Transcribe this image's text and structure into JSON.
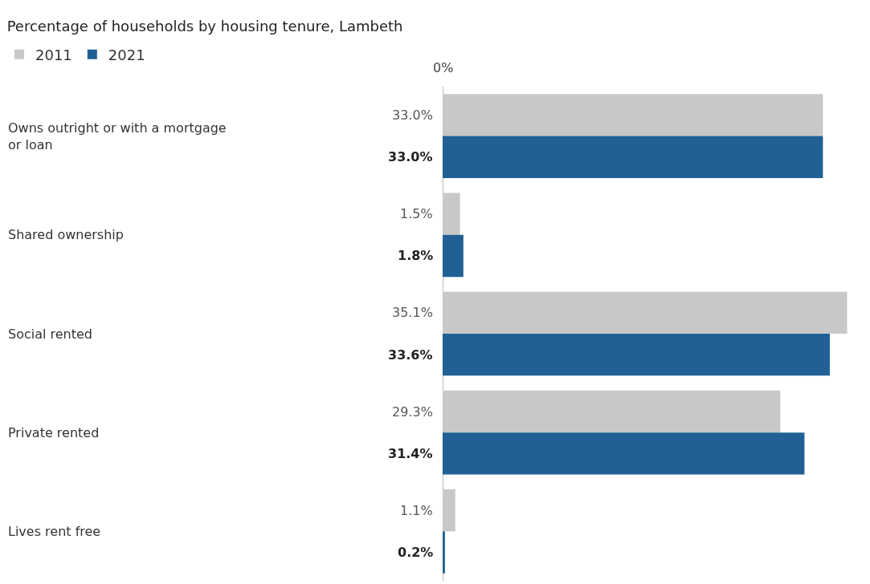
{
  "chart_data": {
    "type": "bar",
    "orientation": "horizontal",
    "title": "Percentage of households by housing tenure, Lambeth",
    "categories": [
      "Owns outright or with a mortgage or loan",
      "Shared ownership",
      "Social rented",
      "Private rented",
      "Lives rent free"
    ],
    "series": [
      {
        "name": "2011",
        "color": "#c8c8c8",
        "values": [
          33.0,
          1.5,
          35.1,
          29.3,
          1.1
        ],
        "value_labels": [
          "33.0%",
          "1.5%",
          "35.1%",
          "29.3%",
          "1.1%"
        ]
      },
      {
        "name": "2021",
        "color": "#206095",
        "values": [
          33.0,
          1.8,
          33.6,
          31.4,
          0.2
        ],
        "value_labels": [
          "33.0%",
          "1.8%",
          "33.6%",
          "31.4%",
          "0.2%"
        ]
      }
    ],
    "annotations": [
      "0%"
    ],
    "legend": "top left"
  }
}
